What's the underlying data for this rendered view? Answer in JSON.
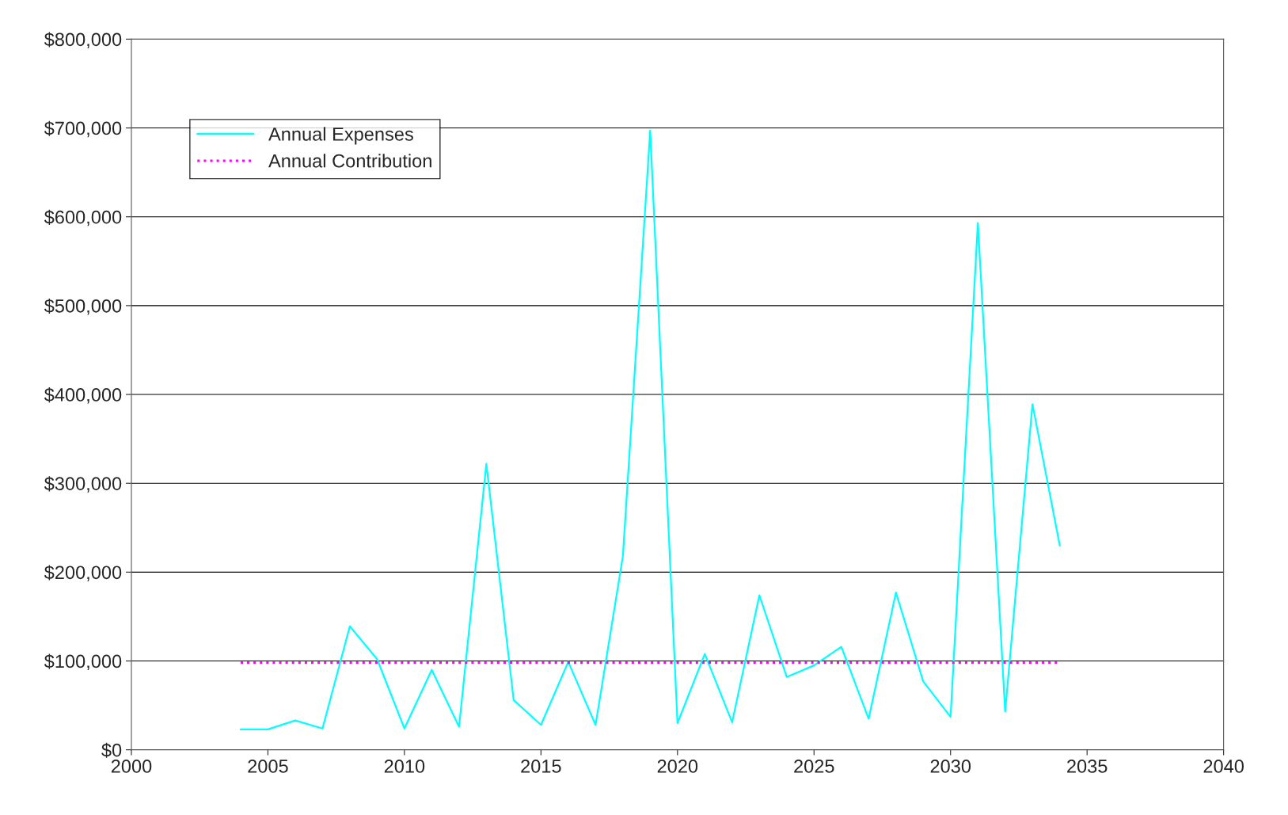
{
  "chart_data": {
    "type": "line",
    "x": [
      2004,
      2005,
      2006,
      2007,
      2008,
      2009,
      2010,
      2011,
      2012,
      2013,
      2014,
      2015,
      2016,
      2017,
      2018,
      2019,
      2020,
      2021,
      2022,
      2023,
      2024,
      2025,
      2026,
      2027,
      2028,
      2029,
      2030,
      2031,
      2032,
      2033,
      2034
    ],
    "series": [
      {
        "name": "Annual Expenses",
        "color": "#00ffff",
        "line_style": "solid",
        "values": [
          23000,
          23000,
          33000,
          24000,
          139000,
          102000,
          24000,
          90000,
          26000,
          322000,
          56000,
          28000,
          99000,
          28000,
          218000,
          697000,
          30000,
          108000,
          31000,
          174000,
          82000,
          95000,
          116000,
          35000,
          177000,
          77000,
          37000,
          593000,
          43000,
          389000,
          230000
        ]
      },
      {
        "name": "Annual Contribution",
        "color": "#ff00ff",
        "line_style": "dotted",
        "values": [
          98000,
          98000,
          98000,
          98000,
          98000,
          98000,
          98000,
          98000,
          98000,
          98000,
          98000,
          98000,
          98000,
          98000,
          98000,
          98000,
          98000,
          98000,
          98000,
          98000,
          98000,
          98000,
          98000,
          98000,
          98000,
          98000,
          98000,
          98000,
          98000,
          98000,
          98000
        ]
      }
    ],
    "xlim": [
      2000,
      2040
    ],
    "xticks": [
      2000,
      2005,
      2010,
      2015,
      2020,
      2025,
      2030,
      2035,
      2040
    ],
    "ylim": [
      0,
      800000
    ],
    "yticks": [
      {
        "value": 0,
        "label": "$0"
      },
      {
        "value": 100000,
        "label": "$100,000"
      },
      {
        "value": 200000,
        "label": "$200,000"
      },
      {
        "value": 300000,
        "label": "$300,000"
      },
      {
        "value": 400000,
        "label": "$400,000"
      },
      {
        "value": 500000,
        "label": "$500,000"
      },
      {
        "value": 600000,
        "label": "$600,000"
      },
      {
        "value": 700000,
        "label": "$700,000"
      },
      {
        "value": 800000,
        "label": "$800,000"
      }
    ],
    "grid": "y",
    "legend": "top left",
    "marker": "none"
  }
}
